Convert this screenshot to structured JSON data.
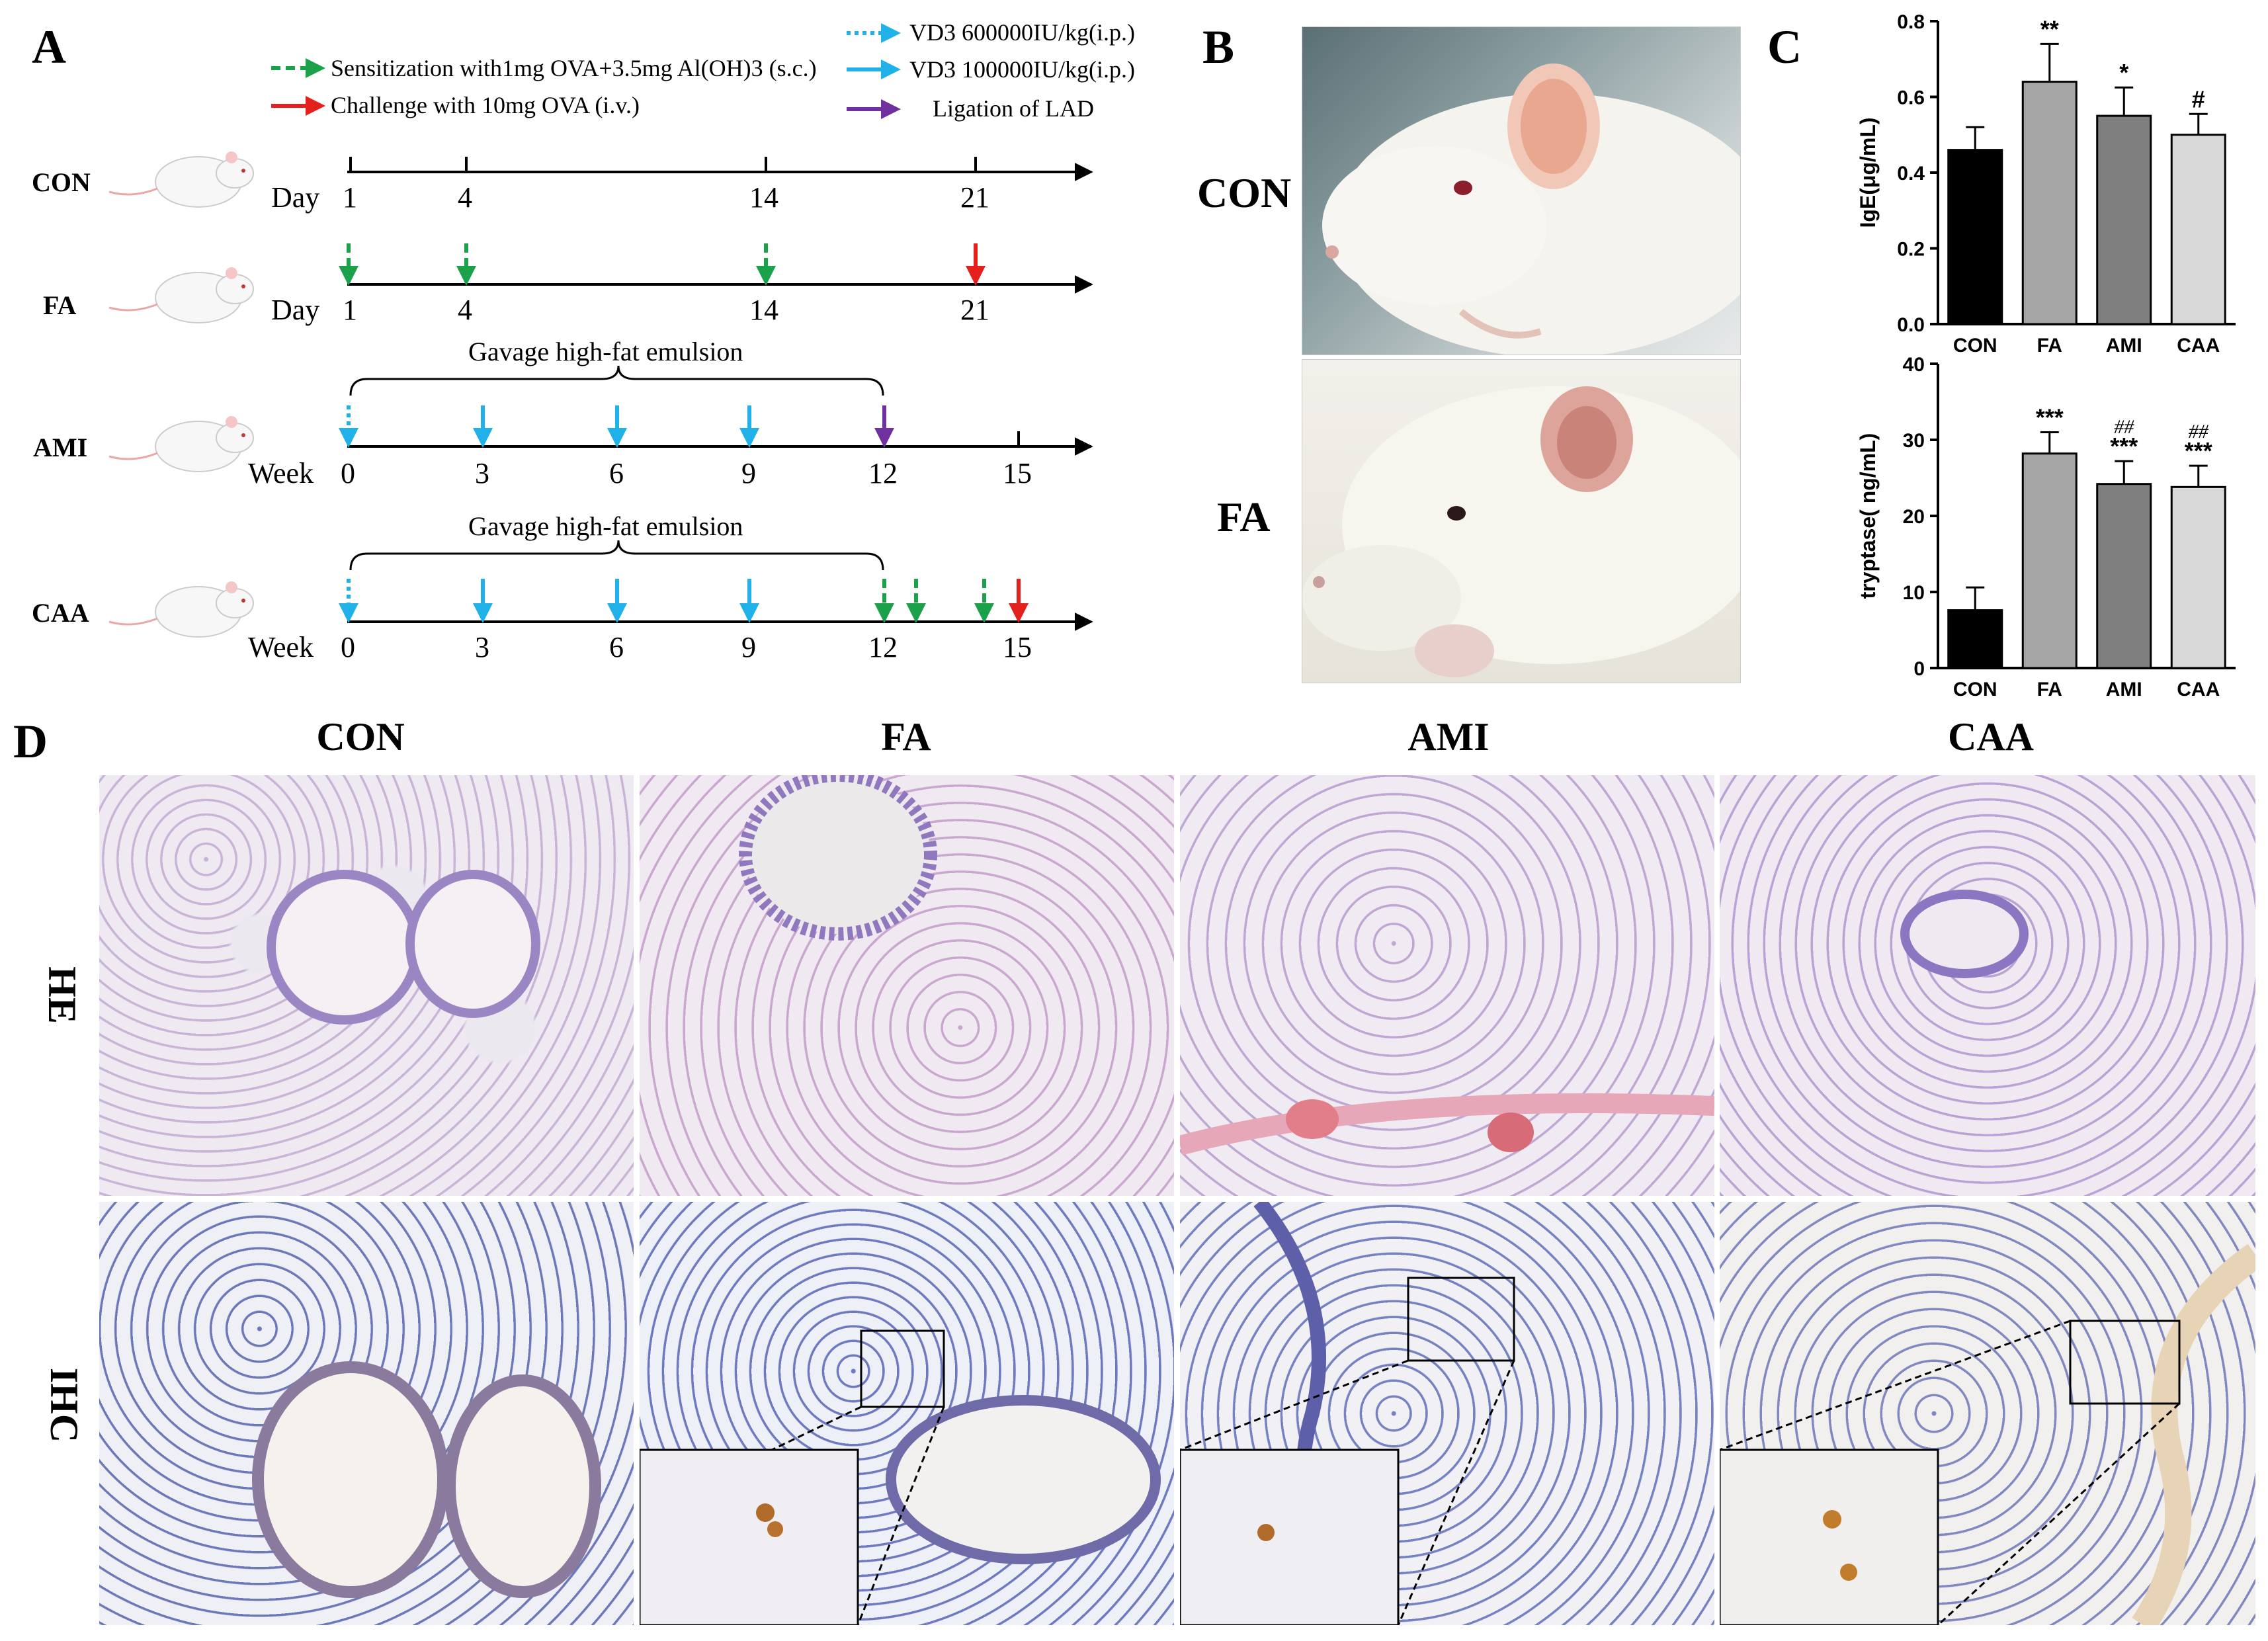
{
  "panels": {
    "A": "A",
    "B": "B",
    "C": "C",
    "D": "D"
  },
  "legend": {
    "sensitization": "Sensitization with1mg OVA+3.5mg Al(OH)3 (s.c.)",
    "challenge": "Challenge with 10mg OVA (i.v.)",
    "vd3_high": "VD3 600000IU/kg(i.p.)",
    "vd3_low": "VD3 100000IU/kg(i.p.)",
    "ligation": "Ligation of LAD"
  },
  "colors": {
    "sensitization": "#1aa14a",
    "challenge": "#e3201b",
    "vd3": "#1fb1e8",
    "ligation": "#7030a0"
  },
  "timelines": [
    {
      "group": "CON",
      "unit": "Day",
      "ticks": [
        "1",
        "4",
        "14",
        "21"
      ]
    },
    {
      "group": "FA",
      "unit": "Day",
      "ticks": [
        "1",
        "4",
        "14",
        "21"
      ]
    },
    {
      "group": "AMI",
      "unit": "Week",
      "ticks": [
        "0",
        "3",
        "6",
        "9",
        "12",
        "15"
      ],
      "brace": "Gavage high-fat emulsion"
    },
    {
      "group": "CAA",
      "unit": "Week",
      "ticks": [
        "0",
        "3",
        "6",
        "9",
        "12",
        "15"
      ],
      "brace": "Gavage high-fat emulsion"
    }
  ],
  "photos": {
    "con_label": "CON",
    "fa_label": "FA"
  },
  "chart_data": [
    {
      "type": "bar",
      "categories": [
        "CON",
        "FA",
        "AMI",
        "CAA"
      ],
      "values": [
        0.46,
        0.64,
        0.55,
        0.5
      ],
      "errors": [
        0.06,
        0.1,
        0.075,
        0.055
      ],
      "annotations": [
        "",
        "**",
        "*",
        "#"
      ],
      "ylabel": "IgE(μg/mL)",
      "ylim": [
        0,
        0.8
      ],
      "yticks": [
        "0.0",
        "0.2",
        "0.4",
        "0.6",
        "0.8"
      ],
      "colors": [
        "#000000",
        "#a6a6a6",
        "#7f7f7f",
        "#d9d9d9"
      ]
    },
    {
      "type": "bar",
      "categories": [
        "CON",
        "FA",
        "AMI",
        "CAA"
      ],
      "values": [
        7.6,
        28.2,
        24.2,
        23.8
      ],
      "errors": [
        3.0,
        2.8,
        3.0,
        2.8
      ],
      "annotations": [
        "",
        "***",
        "***",
        "***"
      ],
      "annotations2": [
        "",
        "",
        "##",
        "##"
      ],
      "ylabel": "tryptase( ng/mL)",
      "ylim": [
        0,
        40
      ],
      "yticks": [
        "0",
        "10",
        "20",
        "30",
        "40"
      ],
      "colors": [
        "#000000",
        "#a6a6a6",
        "#7f7f7f",
        "#d9d9d9"
      ]
    }
  ],
  "histology": {
    "columns": [
      "CON",
      "FA",
      "AMI",
      "CAA"
    ],
    "rows": [
      "HE",
      "IHC"
    ]
  }
}
